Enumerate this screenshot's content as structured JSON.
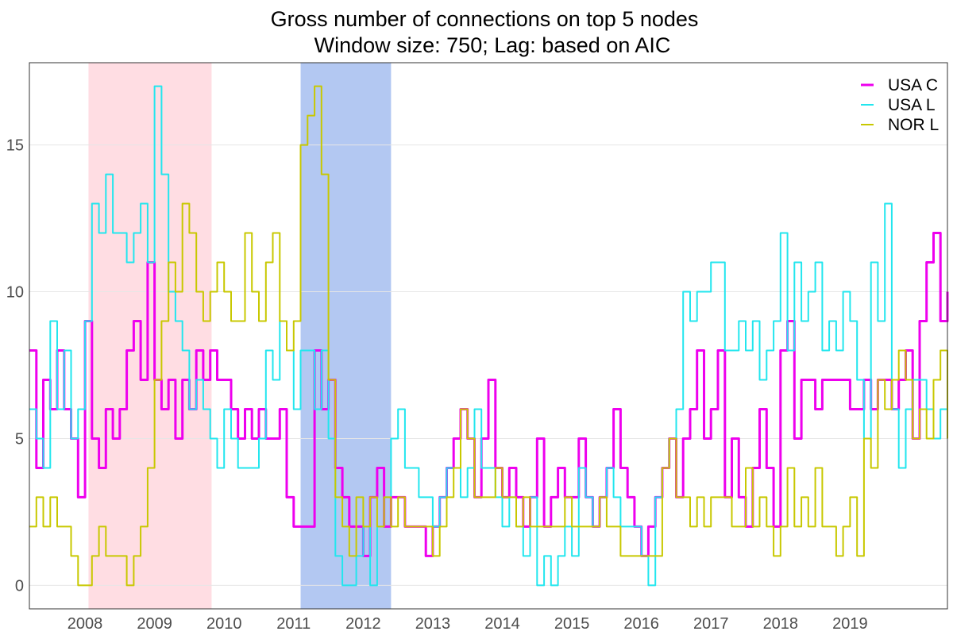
{
  "chart_data": {
    "type": "line",
    "title": "Gross number of connections on top 5 nodes",
    "subtitle": "Window size: 750; Lag: based on AIC",
    "xlabel": "",
    "ylabel": "",
    "x_ticks": [
      "2008",
      "2009",
      "2010",
      "2011",
      "2012",
      "2013",
      "2014",
      "2015",
      "2016",
      "2017",
      "2018",
      "2019"
    ],
    "y_ticks": [
      0,
      5,
      10,
      15
    ],
    "xlim": [
      2007.7,
      2020.9
    ],
    "ylim": [
      -0.8,
      17.8
    ],
    "grid": true,
    "legend_position": "top-right",
    "shaded_periods": [
      {
        "start": 2008.55,
        "end": 2010.32,
        "color": "#ffdde3"
      },
      {
        "start": 2011.6,
        "end": 2012.9,
        "color": "#b3c8f2"
      }
    ],
    "series": [
      {
        "name": "USA C",
        "color": "#ee00ee",
        "width": 3,
        "x": [
          2007.7,
          2007.8,
          2007.9,
          2008.0,
          2008.1,
          2008.2,
          2008.3,
          2008.4,
          2008.5,
          2008.6,
          2008.7,
          2008.8,
          2008.9,
          2009.0,
          2009.1,
          2009.2,
          2009.3,
          2009.4,
          2009.5,
          2009.6,
          2009.7,
          2009.8,
          2009.9,
          2010.0,
          2010.1,
          2010.2,
          2010.3,
          2010.4,
          2010.5,
          2010.6,
          2010.7,
          2010.8,
          2010.9,
          2011.0,
          2011.1,
          2011.2,
          2011.3,
          2011.4,
          2011.5,
          2011.6,
          2011.7,
          2011.8,
          2011.9,
          2012.0,
          2012.1,
          2012.2,
          2012.3,
          2012.4,
          2012.5,
          2012.6,
          2012.7,
          2012.8,
          2012.9,
          2013.0,
          2013.1,
          2013.2,
          2013.3,
          2013.4,
          2013.5,
          2013.6,
          2013.7,
          2013.8,
          2013.9,
          2014.0,
          2014.1,
          2014.2,
          2014.3,
          2014.4,
          2014.5,
          2014.6,
          2014.7,
          2014.8,
          2014.9,
          2015.0,
          2015.1,
          2015.2,
          2015.3,
          2015.4,
          2015.5,
          2015.6,
          2015.7,
          2015.8,
          2015.9,
          2016.0,
          2016.1,
          2016.2,
          2016.3,
          2016.4,
          2016.5,
          2016.6,
          2016.7,
          2016.8,
          2016.9,
          2017.0,
          2017.1,
          2017.2,
          2017.3,
          2017.4,
          2017.5,
          2017.6,
          2017.7,
          2017.8,
          2017.9,
          2018.0,
          2018.1,
          2018.2,
          2018.3,
          2018.4,
          2018.5,
          2018.6,
          2018.7,
          2018.8,
          2018.9,
          2019.0,
          2019.1,
          2019.2,
          2019.3,
          2019.4,
          2019.5,
          2019.6,
          2019.7,
          2019.8,
          2019.9,
          2020.0,
          2020.1,
          2020.2,
          2020.3,
          2020.4,
          2020.5,
          2020.6,
          2020.7,
          2020.8,
          2020.9
        ],
        "values": [
          8,
          4,
          7,
          6,
          8,
          6,
          5,
          3,
          9,
          5,
          4,
          6,
          5,
          6,
          8,
          9,
          7,
          11,
          7,
          6,
          7,
          5,
          7,
          6,
          8,
          7,
          8,
          7,
          7,
          6,
          5,
          6,
          5,
          6,
          5,
          5,
          6,
          3,
          2,
          2,
          2,
          8,
          6,
          7,
          4,
          3,
          2,
          2,
          1,
          3,
          4,
          2,
          3,
          3,
          2,
          2,
          2,
          1,
          2,
          3,
          4,
          5,
          6,
          5,
          3,
          5,
          7,
          4,
          3,
          4,
          3,
          2,
          3,
          5,
          2,
          3,
          4,
          3,
          3,
          5,
          3,
          2,
          3,
          4,
          6,
          4,
          3,
          2,
          1,
          2,
          3,
          4,
          5,
          3,
          5,
          6,
          8,
          5,
          6,
          8,
          3,
          5,
          3,
          2,
          4,
          6,
          4,
          2,
          8,
          9,
          5,
          7,
          7,
          6,
          7,
          7,
          7,
          7,
          6,
          6,
          7,
          6,
          7,
          7,
          6,
          7,
          8,
          5,
          9,
          11,
          12,
          9,
          10
        ]
      },
      {
        "name": "USA L",
        "color": "#22e6ee",
        "width": 2,
        "x": [
          2007.7,
          2007.8,
          2007.9,
          2008.0,
          2008.1,
          2008.2,
          2008.3,
          2008.4,
          2008.5,
          2008.6,
          2008.7,
          2008.8,
          2008.9,
          2009.0,
          2009.1,
          2009.2,
          2009.3,
          2009.4,
          2009.5,
          2009.6,
          2009.7,
          2009.8,
          2009.9,
          2010.0,
          2010.1,
          2010.2,
          2010.3,
          2010.4,
          2010.5,
          2010.6,
          2010.7,
          2010.8,
          2010.9,
          2011.0,
          2011.1,
          2011.2,
          2011.3,
          2011.4,
          2011.5,
          2011.6,
          2011.7,
          2011.8,
          2011.9,
          2012.0,
          2012.1,
          2012.2,
          2012.3,
          2012.4,
          2012.5,
          2012.6,
          2012.7,
          2012.8,
          2012.9,
          2013.0,
          2013.1,
          2013.2,
          2013.3,
          2013.4,
          2013.5,
          2013.6,
          2013.7,
          2013.8,
          2013.9,
          2014.0,
          2014.1,
          2014.2,
          2014.3,
          2014.4,
          2014.5,
          2014.6,
          2014.7,
          2014.8,
          2014.9,
          2015.0,
          2015.1,
          2015.2,
          2015.3,
          2015.4,
          2015.5,
          2015.6,
          2015.7,
          2015.8,
          2015.9,
          2016.0,
          2016.1,
          2016.2,
          2016.3,
          2016.4,
          2016.5,
          2016.6,
          2016.7,
          2016.8,
          2016.9,
          2017.0,
          2017.1,
          2017.2,
          2017.3,
          2017.4,
          2017.5,
          2017.6,
          2017.7,
          2017.8,
          2017.9,
          2018.0,
          2018.1,
          2018.2,
          2018.3,
          2018.4,
          2018.5,
          2018.6,
          2018.7,
          2018.8,
          2018.9,
          2019.0,
          2019.1,
          2019.2,
          2019.3,
          2019.4,
          2019.5,
          2019.6,
          2019.7,
          2019.8,
          2019.9,
          2020.0,
          2020.1,
          2020.2,
          2020.3,
          2020.4,
          2020.5,
          2020.6,
          2020.7,
          2020.8,
          2020.9
        ],
        "values": [
          6,
          5,
          4,
          9,
          6,
          8,
          5,
          6,
          9,
          13,
          12,
          14,
          12,
          12,
          11,
          12,
          13,
          11,
          17,
          14,
          10,
          9,
          8,
          6,
          7,
          6,
          5,
          4,
          6,
          5,
          4,
          4,
          4,
          5,
          8,
          7,
          9,
          8,
          6,
          8,
          8,
          6,
          8,
          5,
          1,
          0,
          0,
          1,
          2,
          0,
          2,
          3,
          5,
          6,
          4,
          4,
          3,
          3,
          2,
          3,
          4,
          4,
          3,
          4,
          6,
          4,
          4,
          3,
          2,
          3,
          2,
          1,
          3,
          0,
          1,
          0,
          1,
          2,
          1,
          4,
          3,
          2,
          3,
          4,
          3,
          2,
          2,
          2,
          1,
          0,
          3,
          4,
          5,
          6,
          10,
          9,
          10,
          10,
          11,
          11,
          8,
          8,
          9,
          8,
          9,
          7,
          8,
          9,
          12,
          8,
          11,
          9,
          10,
          11,
          8,
          9,
          8,
          10,
          9,
          7,
          5,
          11,
          9,
          13,
          6,
          4,
          6,
          7,
          7,
          6,
          5,
          6,
          7
        ]
      },
      {
        "name": "NOR L",
        "color": "#c8c800",
        "width": 2,
        "x": [
          2007.7,
          2007.8,
          2007.9,
          2008.0,
          2008.1,
          2008.2,
          2008.3,
          2008.4,
          2008.5,
          2008.6,
          2008.7,
          2008.8,
          2008.9,
          2009.0,
          2009.1,
          2009.2,
          2009.3,
          2009.4,
          2009.5,
          2009.6,
          2009.7,
          2009.8,
          2009.9,
          2010.0,
          2010.1,
          2010.2,
          2010.3,
          2010.4,
          2010.5,
          2010.6,
          2010.7,
          2010.8,
          2010.9,
          2011.0,
          2011.1,
          2011.2,
          2011.3,
          2011.4,
          2011.5,
          2011.6,
          2011.7,
          2011.8,
          2011.9,
          2012.0,
          2012.1,
          2012.2,
          2012.3,
          2012.4,
          2012.5,
          2012.6,
          2012.7,
          2012.8,
          2012.9,
          2013.0,
          2013.1,
          2013.2,
          2013.3,
          2013.4,
          2013.5,
          2013.6,
          2013.7,
          2013.8,
          2013.9,
          2014.0,
          2014.1,
          2014.2,
          2014.3,
          2014.4,
          2014.5,
          2014.6,
          2014.7,
          2014.8,
          2014.9,
          2015.0,
          2015.1,
          2015.2,
          2015.3,
          2015.4,
          2015.5,
          2015.6,
          2015.7,
          2015.8,
          2015.9,
          2016.0,
          2016.1,
          2016.2,
          2016.3,
          2016.4,
          2016.5,
          2016.6,
          2016.7,
          2016.8,
          2016.9,
          2017.0,
          2017.1,
          2017.2,
          2017.3,
          2017.4,
          2017.5,
          2017.6,
          2017.7,
          2017.8,
          2017.9,
          2018.0,
          2018.1,
          2018.2,
          2018.3,
          2018.4,
          2018.5,
          2018.6,
          2018.7,
          2018.8,
          2018.9,
          2019.0,
          2019.1,
          2019.2,
          2019.3,
          2019.4,
          2019.5,
          2019.6,
          2019.7,
          2019.8,
          2019.9,
          2020.0,
          2020.1,
          2020.2,
          2020.3,
          2020.4,
          2020.5,
          2020.6,
          2020.7,
          2020.8,
          2020.9
        ],
        "values": [
          2,
          3,
          2,
          3,
          2,
          2,
          1,
          0,
          0,
          1,
          2,
          1,
          1,
          1,
          0,
          1,
          2,
          4,
          7,
          9,
          11,
          10,
          13,
          12,
          10,
          9,
          10,
          11,
          10,
          9,
          9,
          12,
          10,
          9,
          11,
          12,
          9,
          8,
          9,
          15,
          16,
          17,
          14,
          7,
          3,
          2,
          1,
          3,
          2,
          3,
          2,
          3,
          2,
          3,
          2,
          2,
          2,
          2,
          1,
          2,
          3,
          4,
          6,
          5,
          3,
          3,
          3,
          4,
          3,
          3,
          2,
          3,
          2,
          2,
          2,
          2,
          2,
          3,
          2,
          2,
          2,
          2,
          3,
          2,
          2,
          1,
          1,
          1,
          1,
          1,
          1,
          4,
          5,
          3,
          3,
          2,
          3,
          2,
          3,
          3,
          3,
          2,
          2,
          4,
          2,
          3,
          2,
          1,
          2,
          4,
          2,
          3,
          2,
          4,
          2,
          2,
          1,
          2,
          3,
          1,
          5,
          4,
          7,
          6,
          7,
          8,
          7,
          5,
          6,
          5,
          7,
          8,
          5
        ]
      }
    ]
  }
}
